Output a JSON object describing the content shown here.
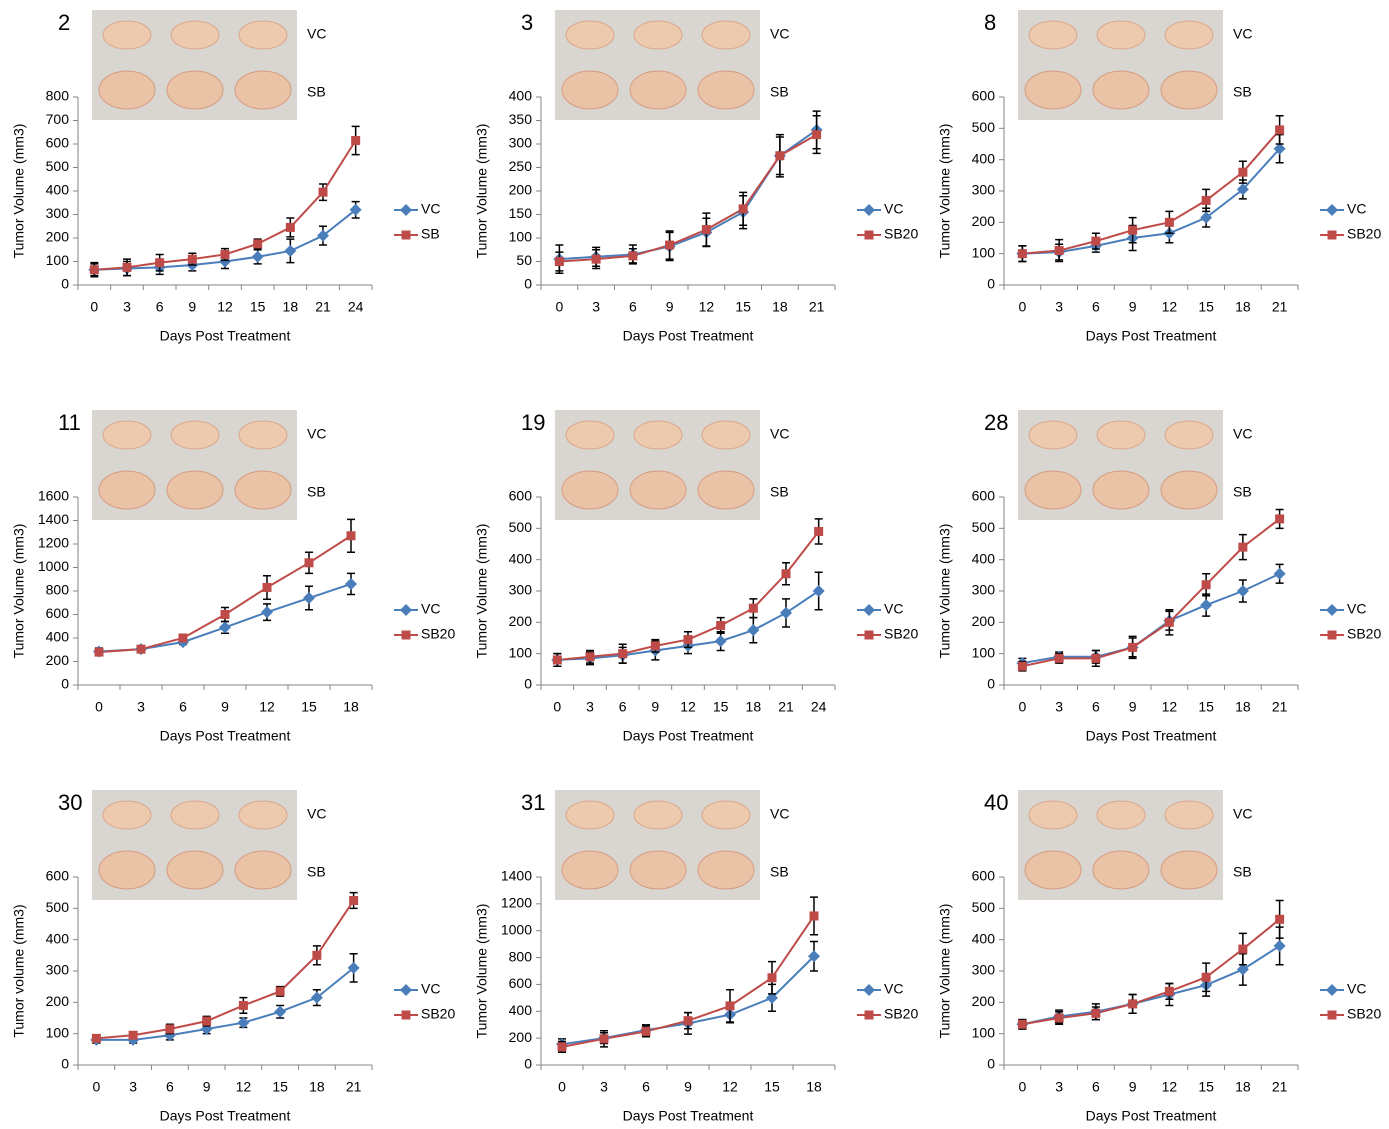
{
  "chart_data": [
    {
      "type": "line",
      "panel_label": "2",
      "photo_labels": [
        "VC",
        "SB"
      ],
      "y_label": "Tumor Volume (mm3)",
      "x_label": "Days Post Treatment",
      "categories": [
        0,
        3,
        6,
        9,
        12,
        15,
        18,
        21,
        24
      ],
      "ylim": [
        0,
        800
      ],
      "yticks": [
        0,
        100,
        200,
        300,
        400,
        500,
        600,
        700,
        800
      ],
      "legend": "right",
      "series": [
        {
          "name": "VC",
          "color": "#4a7ebb",
          "marker": "diamond",
          "values": [
            65,
            70,
            75,
            85,
            100,
            120,
            145,
            210,
            320
          ],
          "errors": [
            30,
            30,
            30,
            25,
            30,
            30,
            50,
            40,
            35
          ]
        },
        {
          "name": "SB",
          "color": "#be4b48",
          "marker": "square",
          "values": [
            65,
            75,
            95,
            110,
            130,
            175,
            245,
            395,
            615
          ],
          "errors": [
            25,
            35,
            35,
            25,
            25,
            20,
            40,
            35,
            60
          ]
        }
      ]
    },
    {
      "type": "line",
      "panel_label": "3",
      "photo_labels": [
        "VC",
        "SB"
      ],
      "y_label": "Tumor Volume (mm3)",
      "x_label": "Days Post Treatment",
      "categories": [
        0,
        3,
        6,
        9,
        12,
        15,
        18,
        21
      ],
      "ylim": [
        0,
        400
      ],
      "yticks": [
        0,
        50,
        100,
        150,
        200,
        250,
        300,
        350,
        400
      ],
      "legend": "right",
      "series": [
        {
          "name": "VC",
          "color": "#4a7ebb",
          "marker": "diamond",
          "values": [
            55,
            60,
            65,
            82,
            112,
            155,
            275,
            330
          ],
          "errors": [
            30,
            20,
            20,
            30,
            30,
            35,
            40,
            40
          ]
        },
        {
          "name": "SB20",
          "color": "#be4b48",
          "marker": "square",
          "values": [
            50,
            55,
            62,
            85,
            118,
            162,
            275,
            320
          ],
          "errors": [
            20,
            20,
            15,
            30,
            35,
            35,
            45,
            40
          ]
        }
      ]
    },
    {
      "type": "line",
      "panel_label": "8",
      "photo_labels": [
        "VC",
        "SB"
      ],
      "y_label": "Tumor Volume (mm3)",
      "x_label": "Days Post Treatment",
      "categories": [
        0,
        3,
        6,
        9,
        12,
        15,
        18,
        21
      ],
      "ylim": [
        0,
        600
      ],
      "yticks": [
        0,
        100,
        200,
        300,
        400,
        500,
        600
      ],
      "legend": "right",
      "series": [
        {
          "name": "VC",
          "color": "#4a7ebb",
          "marker": "diamond",
          "values": [
            100,
            105,
            125,
            150,
            165,
            215,
            305,
            435
          ],
          "errors": [
            25,
            25,
            20,
            40,
            30,
            30,
            30,
            45
          ]
        },
        {
          "name": "SB20",
          "color": "#be4b48",
          "marker": "square",
          "values": [
            100,
            110,
            140,
            175,
            200,
            270,
            360,
            495
          ],
          "errors": [
            25,
            35,
            25,
            40,
            35,
            35,
            35,
            45
          ]
        }
      ]
    },
    {
      "type": "line",
      "panel_label": "11",
      "photo_labels": [
        "VC",
        "SB"
      ],
      "y_label": "Tumor Volume (mm3)",
      "x_label": "Days Post Treatment",
      "categories": [
        0,
        3,
        6,
        9,
        12,
        15,
        18
      ],
      "ylim": [
        0,
        1600
      ],
      "yticks": [
        0,
        200,
        400,
        600,
        800,
        1000,
        1200,
        1400,
        1600
      ],
      "legend": "right",
      "series": [
        {
          "name": "VC",
          "color": "#4a7ebb",
          "marker": "diamond",
          "values": [
            285,
            305,
            365,
            490,
            620,
            740,
            860
          ],
          "errors": [
            30,
            20,
            20,
            50,
            70,
            100,
            90
          ]
        },
        {
          "name": "SB20",
          "color": "#be4b48",
          "marker": "square",
          "values": [
            280,
            305,
            400,
            600,
            830,
            1040,
            1270
          ],
          "errors": [
            30,
            20,
            30,
            60,
            100,
            90,
            140
          ]
        }
      ]
    },
    {
      "type": "line",
      "panel_label": "19",
      "photo_labels": [
        "VC",
        "SB"
      ],
      "y_label": "Tumor Volume (mm3)",
      "x_label": "Days Post Treatment",
      "categories": [
        0,
        3,
        6,
        9,
        12,
        15,
        18,
        21,
        24
      ],
      "ylim": [
        0,
        600
      ],
      "yticks": [
        0,
        100,
        200,
        300,
        400,
        500,
        600
      ],
      "legend": "right",
      "series": [
        {
          "name": "VC",
          "color": "#4a7ebb",
          "marker": "diamond",
          "values": [
            80,
            85,
            95,
            110,
            125,
            140,
            175,
            230,
            300
          ],
          "errors": [
            20,
            20,
            25,
            30,
            25,
            30,
            40,
            45,
            60
          ]
        },
        {
          "name": "SB20",
          "color": "#be4b48",
          "marker": "square",
          "values": [
            80,
            90,
            100,
            125,
            145,
            190,
            245,
            355,
            490
          ],
          "errors": [
            20,
            20,
            30,
            20,
            25,
            25,
            30,
            35,
            40
          ]
        }
      ]
    },
    {
      "type": "line",
      "panel_label": "28",
      "photo_labels": [
        "VC",
        "SB"
      ],
      "y_label": "Tumor Volume (mm3)",
      "x_label": "Days Post Treatment",
      "categories": [
        0,
        3,
        6,
        9,
        12,
        15,
        18,
        21
      ],
      "ylim": [
        0,
        600
      ],
      "yticks": [
        0,
        100,
        200,
        300,
        400,
        500,
        600
      ],
      "legend": "right",
      "series": [
        {
          "name": "VC",
          "color": "#4a7ebb",
          "marker": "diamond",
          "values": [
            70,
            90,
            90,
            120,
            205,
            255,
            300,
            355
          ],
          "errors": [
            15,
            15,
            20,
            30,
            30,
            35,
            35,
            30
          ]
        },
        {
          "name": "SB20",
          "color": "#be4b48",
          "marker": "square",
          "values": [
            60,
            85,
            85,
            120,
            200,
            320,
            440,
            530
          ],
          "errors": [
            15,
            15,
            25,
            35,
            40,
            35,
            40,
            30
          ]
        }
      ]
    },
    {
      "type": "line",
      "panel_label": "30",
      "photo_labels": [
        "VC",
        "SB"
      ],
      "y_label": "Tumor volume (mm3)",
      "x_label": "Days Post Treatment",
      "categories": [
        0,
        3,
        6,
        9,
        12,
        15,
        18,
        21
      ],
      "ylim": [
        0,
        600
      ],
      "yticks": [
        0,
        100,
        200,
        300,
        400,
        500,
        600
      ],
      "legend": "right",
      "series": [
        {
          "name": "VC",
          "color": "#4a7ebb",
          "marker": "diamond",
          "values": [
            80,
            80,
            95,
            115,
            135,
            170,
            215,
            310
          ],
          "errors": [
            10,
            10,
            15,
            15,
            15,
            20,
            25,
            45
          ]
        },
        {
          "name": "SB20",
          "color": "#be4b48",
          "marker": "square",
          "values": [
            85,
            95,
            115,
            140,
            190,
            235,
            350,
            525
          ],
          "errors": [
            10,
            10,
            15,
            15,
            25,
            15,
            30,
            25
          ]
        }
      ]
    },
    {
      "type": "line",
      "panel_label": "31",
      "photo_labels": [
        "VC",
        "SB"
      ],
      "y_label": "Tumor Volume (mm3)",
      "x_label": "Days Post Treatment",
      "categories": [
        0,
        3,
        6,
        9,
        12,
        15,
        18
      ],
      "ylim": [
        0,
        1400
      ],
      "yticks": [
        0,
        200,
        400,
        600,
        800,
        1000,
        1200,
        1400
      ],
      "legend": "right",
      "series": [
        {
          "name": "VC",
          "color": "#4a7ebb",
          "marker": "diamond",
          "values": [
            155,
            200,
            260,
            310,
            375,
            500,
            810
          ],
          "errors": [
            40,
            40,
            40,
            80,
            60,
            100,
            110
          ]
        },
        {
          "name": "SB20",
          "color": "#be4b48",
          "marker": "square",
          "values": [
            135,
            195,
            250,
            330,
            440,
            650,
            1110
          ],
          "errors": [
            40,
            60,
            40,
            60,
            120,
            120,
            140
          ]
        }
      ]
    },
    {
      "type": "line",
      "panel_label": "40",
      "photo_labels": [
        "VC",
        "SB"
      ],
      "y_label": "Tumor Volume (mm3)",
      "x_label": "Days Post Treatment",
      "categories": [
        0,
        3,
        6,
        9,
        12,
        15,
        18,
        21
      ],
      "ylim": [
        0,
        600
      ],
      "yticks": [
        0,
        100,
        200,
        300,
        400,
        500,
        600
      ],
      "legend": "right",
      "series": [
        {
          "name": "VC",
          "color": "#4a7ebb",
          "marker": "diamond",
          "values": [
            130,
            155,
            170,
            195,
            225,
            255,
            305,
            380
          ],
          "errors": [
            15,
            20,
            25,
            30,
            35,
            35,
            50,
            60
          ]
        },
        {
          "name": "SB20",
          "color": "#be4b48",
          "marker": "square",
          "values": [
            130,
            150,
            165,
            195,
            235,
            280,
            370,
            465
          ],
          "errors": [
            15,
            20,
            20,
            30,
            25,
            45,
            50,
            60
          ]
        }
      ]
    }
  ]
}
